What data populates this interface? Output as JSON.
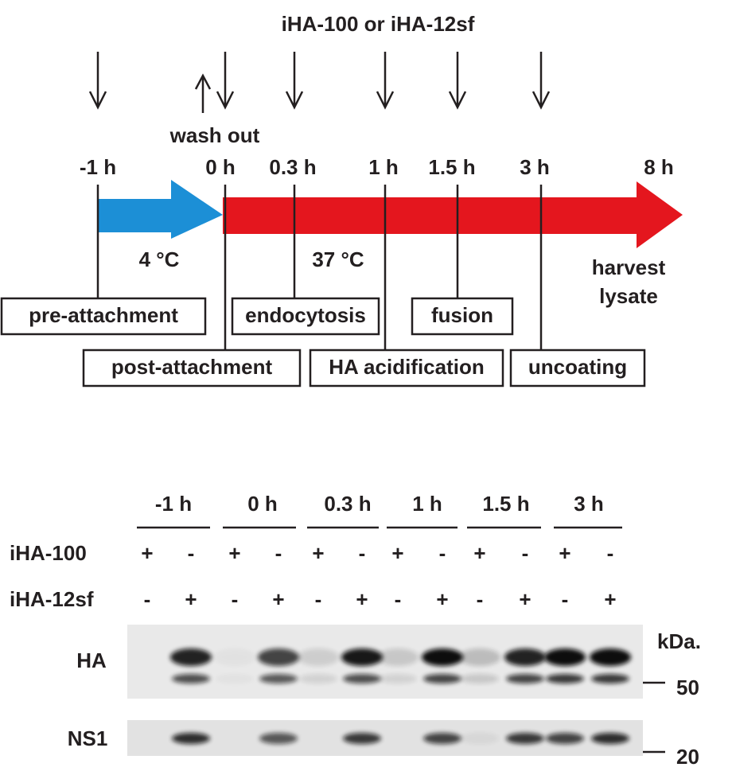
{
  "timeline": {
    "title": "iHA-100 or iHA-12sf",
    "wash_out": "wash out",
    "times": [
      "-1 h",
      "0 h",
      "0.3 h",
      "1 h",
      "1.5 h",
      "3 h",
      "8 h"
    ],
    "cold": "4 °C",
    "warm": "37 °C",
    "harvest": [
      "harvest",
      "lysate"
    ],
    "stages": [
      "pre-attachment",
      "endocytosis",
      "fusion",
      "post-attachment",
      "HA acidification",
      "uncoating"
    ]
  },
  "blot": {
    "times": [
      "-1 h",
      "0 h",
      "0.3 h",
      "1 h",
      "1.5 h",
      "3 h"
    ],
    "rows": [
      {
        "label": "iHA-100",
        "signs": [
          "+",
          "-",
          "+",
          "-",
          "+",
          "-",
          "+",
          "-",
          "+",
          "-",
          "+",
          "-"
        ]
      },
      {
        "label": "iHA-12sf",
        "signs": [
          "-",
          "+",
          "-",
          "+",
          "-",
          "+",
          "-",
          "+",
          "-",
          "+",
          "-",
          "+"
        ]
      }
    ],
    "panels": [
      "HA",
      "NS1"
    ],
    "unit": "kDa.",
    "markers": [
      "50",
      "20"
    ]
  }
}
